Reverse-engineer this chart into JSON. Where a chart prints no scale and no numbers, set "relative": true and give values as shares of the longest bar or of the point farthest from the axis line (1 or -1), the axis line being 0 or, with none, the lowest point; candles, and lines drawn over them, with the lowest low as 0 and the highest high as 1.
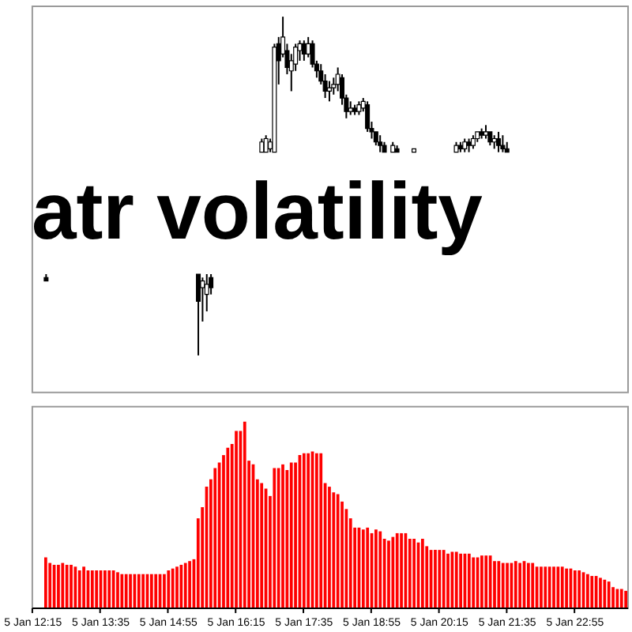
{
  "chart_data": [
    {
      "type": "candlestick",
      "title": "atr volatility",
      "relative": true,
      "tick_labels": false,
      "color": "#000000",
      "categories": [
        "5 Jan 12:15",
        null,
        null,
        null,
        null,
        null,
        null,
        null,
        null,
        null,
        null,
        null,
        null,
        null,
        null,
        null,
        "5 Jan 13:35",
        null,
        null,
        null,
        null,
        null,
        null,
        null,
        null,
        null,
        null,
        null,
        null,
        null,
        null,
        null,
        "5 Jan 14:55",
        null,
        null,
        null,
        null,
        null,
        null,
        null,
        null,
        null,
        null,
        null,
        null,
        null,
        null,
        null,
        "5 Jan 16:15",
        null,
        null,
        null,
        null,
        null,
        null,
        null,
        null,
        null,
        null,
        null,
        null,
        null,
        null,
        null,
        "5 Jan 17:35",
        null,
        null,
        null,
        null,
        null,
        null,
        null,
        null,
        null,
        null,
        null,
        null,
        null,
        null,
        null,
        "5 Jan 18:55",
        null,
        null,
        null,
        null,
        null,
        null,
        null,
        null,
        null,
        null,
        null,
        null,
        null,
        null,
        null,
        "5 Jan 20:15",
        null,
        null,
        null,
        null,
        null,
        null,
        null,
        null,
        null,
        null,
        null,
        null,
        null,
        null,
        null,
        "5 Jan 21:35",
        null,
        null,
        null,
        null,
        null,
        null,
        null,
        null,
        null,
        null,
        null,
        null,
        null,
        null,
        null,
        "5 Jan 22:55",
        null,
        null,
        null,
        null,
        null,
        null,
        null,
        null,
        null,
        null,
        null,
        null
      ],
      "ohlc": [
        null,
        null,
        null,
        [
          0.23,
          0.24,
          0.22,
          0.22
        ],
        null,
        null,
        null,
        null,
        null,
        null,
        null,
        null,
        null,
        null,
        null,
        null,
        null,
        null,
        null,
        null,
        null,
        null,
        null,
        null,
        null,
        null,
        null,
        null,
        null,
        null,
        null,
        null,
        null,
        null,
        null,
        null,
        null,
        null,
        null,
        [
          0.24,
          0.24,
          0,
          0.16
        ],
        [
          0.2,
          0.23,
          0.1,
          0.22
        ],
        [
          0.18,
          0.24,
          0.13,
          0.21
        ],
        [
          0.23,
          0.24,
          0.18,
          0.2
        ],
        null,
        null,
        null,
        null,
        null,
        null,
        null,
        null,
        null,
        null,
        null,
        [
          0.6,
          0.64,
          0.6,
          0.63
        ],
        [
          0.6,
          0.65,
          0.6,
          0.64
        ],
        [
          0.61,
          0.64,
          0.6,
          0.63
        ],
        [
          0.6,
          0.92,
          0.6,
          0.91
        ],
        [
          0.92,
          0.94,
          0.8,
          0.87
        ],
        [
          0.89,
          1,
          0.88,
          0.94
        ],
        [
          0.9,
          0.92,
          0.83,
          0.85
        ],
        [
          0.84,
          0.89,
          0.78,
          0.87
        ],
        [
          0.86,
          0.92,
          0.84,
          0.91
        ],
        [
          0.9,
          0.93,
          0.87,
          0.92
        ],
        [
          0.92,
          0.93,
          0.87,
          0.89
        ],
        [
          0.89,
          0.94,
          0.88,
          0.92
        ],
        [
          0.92,
          0.93,
          0.85,
          0.86
        ],
        [
          0.86,
          0.87,
          0.82,
          0.84
        ],
        [
          0.84,
          0.86,
          0.8,
          0.81
        ],
        [
          0.81,
          0.83,
          0.76,
          0.78
        ],
        [
          0.78,
          0.81,
          0.75,
          0.79
        ],
        [
          0.79,
          0.82,
          0.77,
          0.8
        ],
        [
          0.8,
          0.85,
          0.78,
          0.83
        ],
        [
          0.82,
          0.83,
          0.74,
          0.76
        ],
        [
          0.76,
          0.77,
          0.7,
          0.72
        ],
        [
          0.72,
          0.75,
          0.71,
          0.73
        ],
        [
          0.73,
          0.74,
          0.71,
          0.72
        ],
        [
          0.72,
          0.75,
          0.71,
          0.74
        ],
        [
          0.73,
          0.76,
          0.72,
          0.75
        ],
        [
          0.74,
          0.75,
          0.66,
          0.67
        ],
        [
          0.67,
          0.69,
          0.64,
          0.66
        ],
        [
          0.66,
          0.66,
          0.62,
          0.63
        ],
        [
          0.63,
          0.65,
          0.6,
          0.62
        ],
        [
          0.62,
          0.63,
          0.6,
          0.6
        ],
        null,
        [
          0.6,
          0.63,
          0.6,
          0.62
        ],
        [
          0.61,
          0.62,
          0.6,
          0.6
        ],
        null,
        null,
        null,
        [
          0.6,
          0.61,
          0.6,
          0.61
        ],
        null,
        null,
        null,
        null,
        null,
        null,
        null,
        null,
        null,
        [
          0.6,
          0.63,
          0.6,
          0.62
        ],
        [
          0.62,
          0.63,
          0.6,
          0.61
        ],
        [
          0.61,
          0.64,
          0.6,
          0.63
        ],
        [
          0.63,
          0.64,
          0.6,
          0.62
        ],
        [
          0.62,
          0.65,
          0.61,
          0.64
        ],
        [
          0.64,
          0.66,
          0.63,
          0.66
        ],
        [
          0.66,
          0.67,
          0.64,
          0.65
        ],
        [
          0.65,
          0.68,
          0.64,
          0.66
        ],
        [
          0.66,
          0.66,
          0.62,
          0.63
        ],
        [
          0.63,
          0.65,
          0.61,
          0.64
        ],
        [
          0.64,
          0.66,
          0.6,
          0.62
        ],
        [
          0.62,
          0.65,
          0.6,
          0.61
        ],
        [
          0.61,
          0.63,
          0.6,
          0.6
        ],
        null,
        null,
        null,
        null,
        null,
        null,
        null,
        null,
        null,
        null,
        null,
        null,
        null,
        null,
        null,
        null,
        null,
        null,
        null,
        null,
        null,
        null,
        null,
        null,
        null,
        null,
        null,
        null
      ]
    },
    {
      "type": "bar",
      "relative": true,
      "color": "#ff0000",
      "categories": [
        "5 Jan 12:15",
        null,
        null,
        null,
        null,
        null,
        null,
        null,
        null,
        null,
        null,
        null,
        null,
        null,
        null,
        null,
        "5 Jan 13:35",
        null,
        null,
        null,
        null,
        null,
        null,
        null,
        null,
        null,
        null,
        null,
        null,
        null,
        null,
        null,
        "5 Jan 14:55",
        null,
        null,
        null,
        null,
        null,
        null,
        null,
        null,
        null,
        null,
        null,
        null,
        null,
        null,
        null,
        "5 Jan 16:15",
        null,
        null,
        null,
        null,
        null,
        null,
        null,
        null,
        null,
        null,
        null,
        null,
        null,
        null,
        null,
        "5 Jan 17:35",
        null,
        null,
        null,
        null,
        null,
        null,
        null,
        null,
        null,
        null,
        null,
        null,
        null,
        null,
        null,
        "5 Jan 18:55",
        null,
        null,
        null,
        null,
        null,
        null,
        null,
        null,
        null,
        null,
        null,
        null,
        null,
        null,
        null,
        "5 Jan 20:15",
        null,
        null,
        null,
        null,
        null,
        null,
        null,
        null,
        null,
        null,
        null,
        null,
        null,
        null,
        null,
        "5 Jan 21:35",
        null,
        null,
        null,
        null,
        null,
        null,
        null,
        null,
        null,
        null,
        null,
        null,
        null,
        null,
        null,
        "5 Jan 22:55",
        null,
        null,
        null,
        null,
        null,
        null,
        null,
        null,
        null,
        null,
        null,
        null
      ],
      "values": [
        null,
        null,
        null,
        0.27,
        0.24,
        0.23,
        0.23,
        0.24,
        0.23,
        0.23,
        0.22,
        0.2,
        0.22,
        0.2,
        0.2,
        0.2,
        0.2,
        0.2,
        0.2,
        0.2,
        0.19,
        0.18,
        0.18,
        0.18,
        0.18,
        0.18,
        0.18,
        0.18,
        0.18,
        0.18,
        0.18,
        0.18,
        0.2,
        0.21,
        0.22,
        0.23,
        0.24,
        0.25,
        0.26,
        0.48,
        0.54,
        0.65,
        0.69,
        0.75,
        0.78,
        0.82,
        0.86,
        0.88,
        0.95,
        0.95,
        1,
        0.79,
        0.77,
        0.69,
        0.67,
        0.64,
        0.6,
        0.75,
        0.75,
        0.77,
        0.74,
        0.78,
        0.78,
        0.82,
        0.83,
        0.83,
        0.84,
        0.83,
        0.83,
        0.67,
        0.65,
        0.62,
        0.61,
        0.57,
        0.53,
        0.48,
        0.43,
        0.43,
        0.42,
        0.43,
        0.4,
        0.42,
        0.41,
        0.37,
        0.36,
        0.38,
        0.4,
        0.4,
        0.4,
        0.37,
        0.37,
        0.35,
        0.37,
        0.33,
        0.31,
        0.31,
        0.31,
        0.31,
        0.29,
        0.3,
        0.3,
        0.29,
        0.29,
        0.29,
        0.27,
        0.27,
        0.28,
        0.28,
        0.28,
        0.25,
        0.25,
        0.24,
        0.24,
        0.24,
        0.25,
        0.24,
        0.25,
        0.24,
        0.24,
        0.22,
        0.22,
        0.22,
        0.22,
        0.22,
        0.22,
        0.22,
        0.21,
        0.21,
        0.2,
        0.2,
        0.19,
        0.18,
        0.17,
        0.17,
        0.16,
        0.15,
        0.14,
        0.11,
        0.1,
        0.1,
        0.09
      ]
    }
  ]
}
